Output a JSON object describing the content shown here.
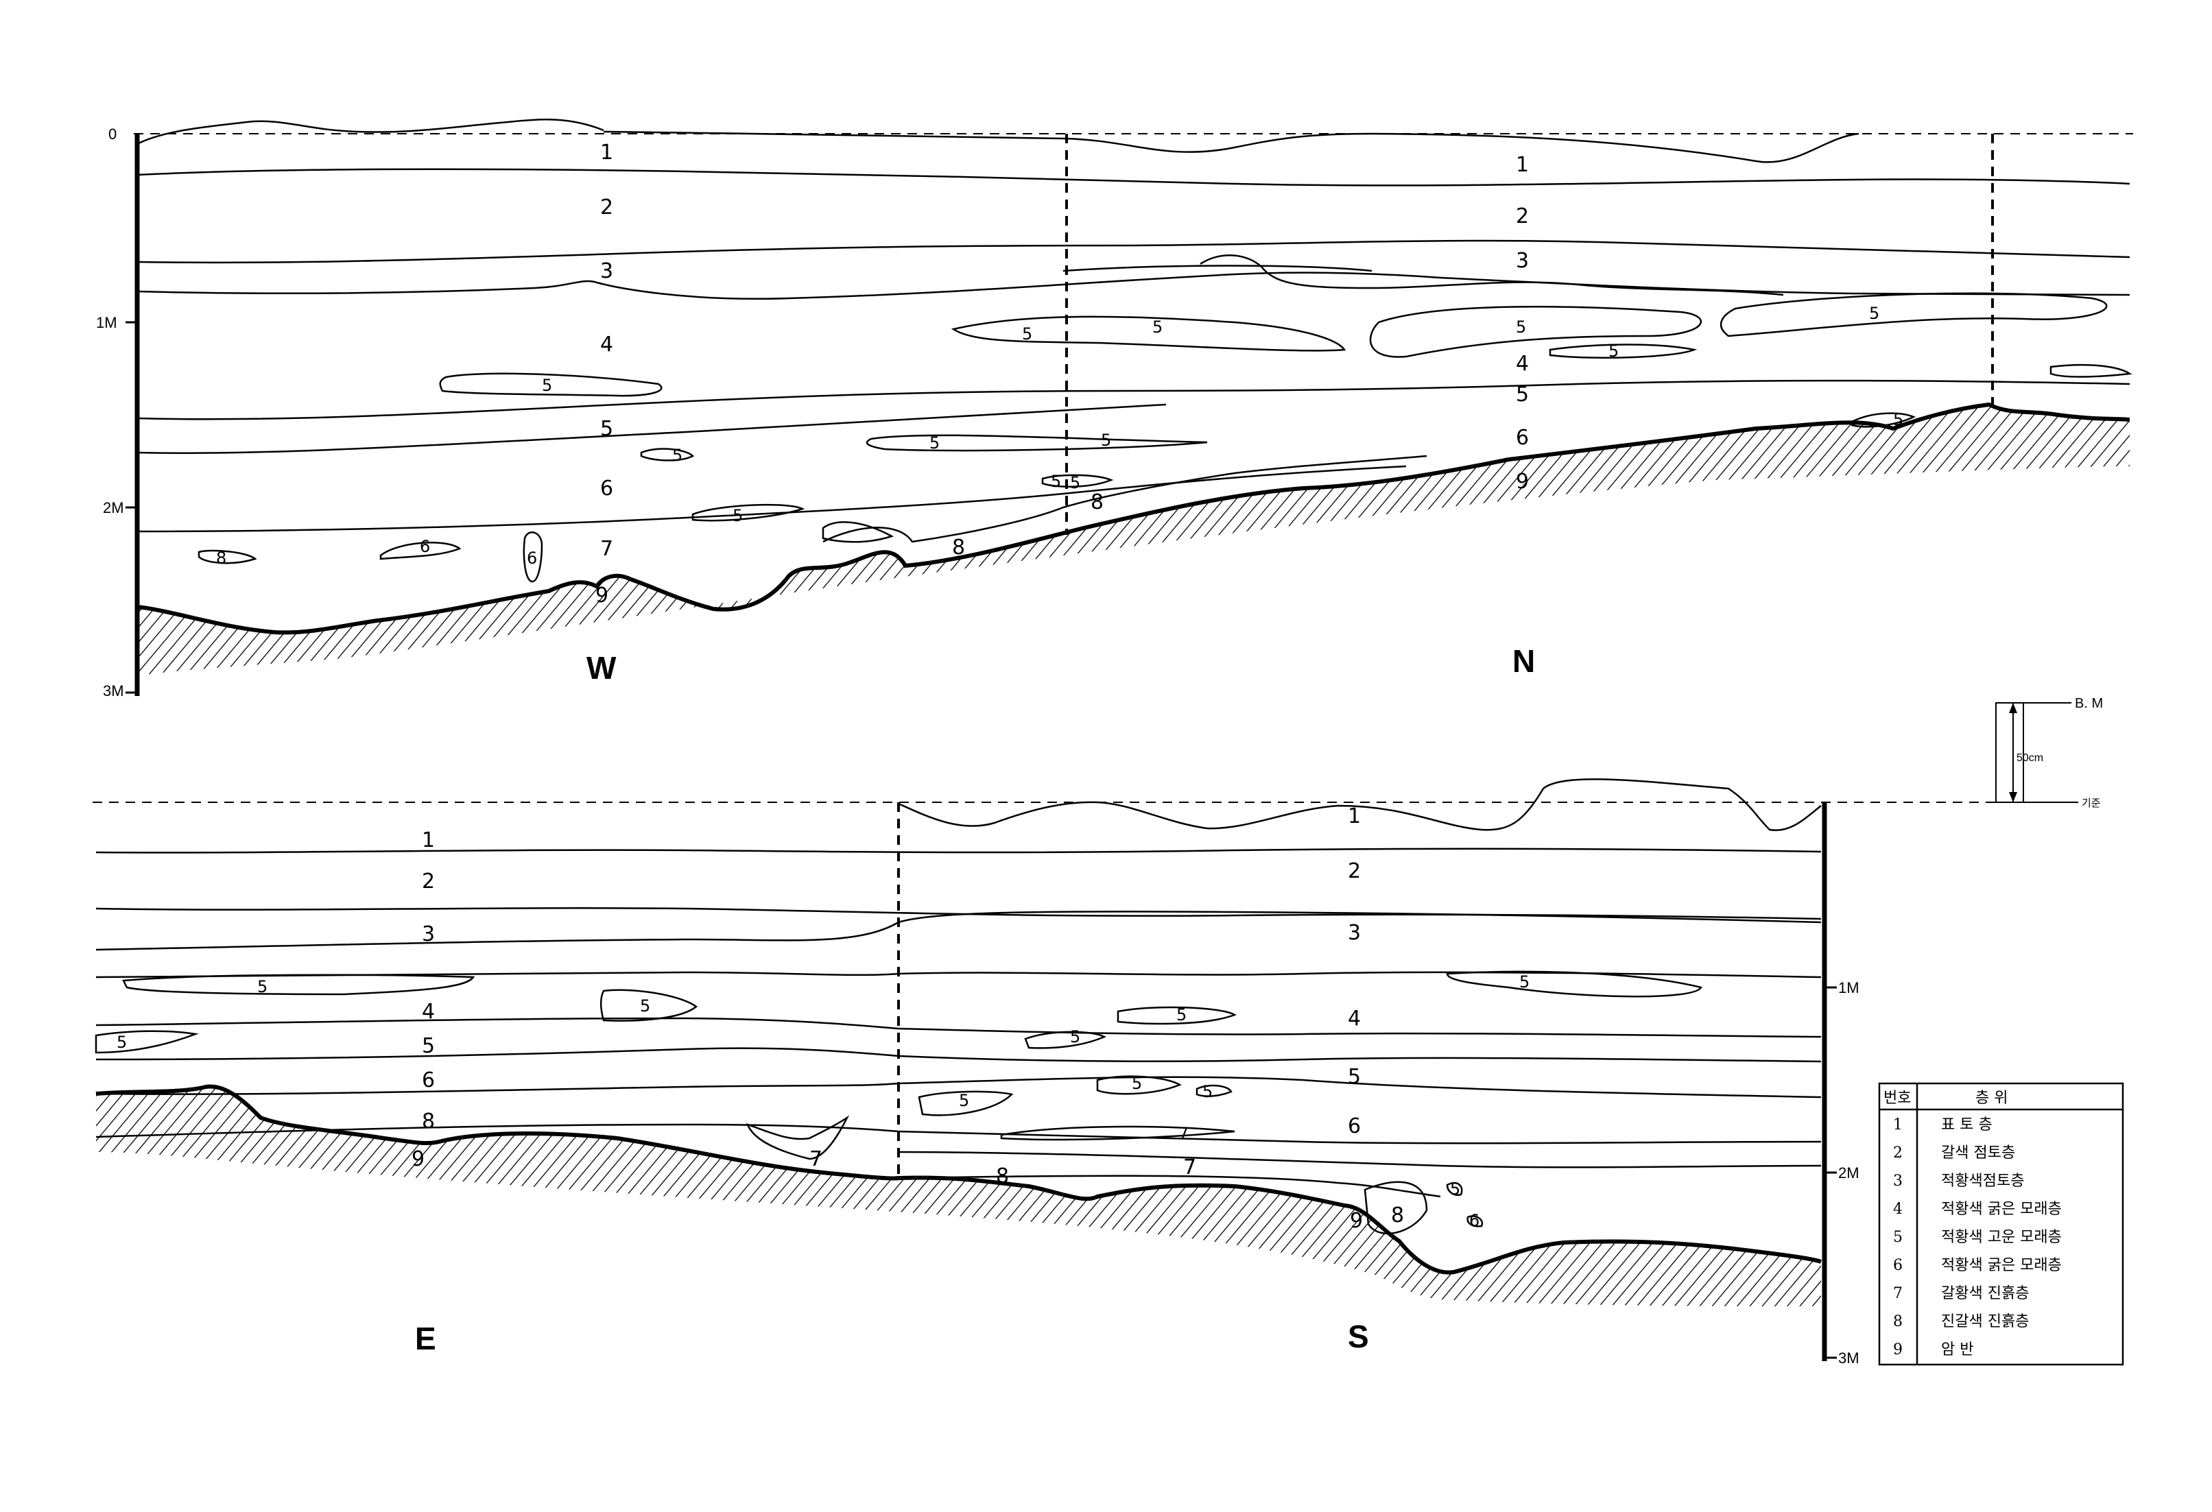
{
  "upper_section": {
    "scale_labels": [
      "0",
      "1M",
      "2M",
      "3M"
    ],
    "left_wall_label": "W",
    "right_wall_label": "N",
    "layer_numbers": [
      "1",
      "2",
      "3",
      "4",
      "5",
      "6",
      "7",
      "8",
      "9"
    ]
  },
  "lower_section": {
    "scale_labels": [
      "1M",
      "2M",
      "3M"
    ],
    "left_wall_label": "E",
    "right_wall_label": "S",
    "layer_numbers": [
      "1",
      "2",
      "3",
      "4",
      "5",
      "6",
      "7",
      "8",
      "9"
    ]
  },
  "reference_marker": {
    "bm_label": "B. M",
    "height_label": "50cm",
    "datum_label": "기준"
  },
  "legend": {
    "header": {
      "number": "번호",
      "layer": "층 위"
    },
    "rows": [
      {
        "number": "1",
        "label": "표 토 층"
      },
      {
        "number": "2",
        "label": "갈색 점토층"
      },
      {
        "number": "3",
        "label": "적황색점토층"
      },
      {
        "number": "4",
        "label": "적황색 굵은 모래층"
      },
      {
        "number": "5",
        "label": "적황색 고운 모래층"
      },
      {
        "number": "6",
        "label": "적황색 굵은 모래층"
      },
      {
        "number": "7",
        "label": "갈황색 진흙층"
      },
      {
        "number": "8",
        "label": "진갈색 진흙층"
      },
      {
        "number": "9",
        "label": "암 반"
      }
    ]
  }
}
